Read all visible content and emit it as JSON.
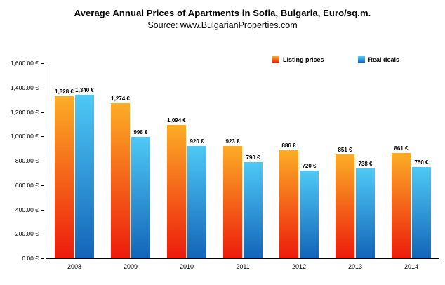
{
  "chart_data": {
    "type": "bar",
    "title": "Average Annual Prices of Apartments in Sofia, Bulgaria, Euro/sq.m.",
    "subtitle": "Source: www.BulgarianProperties.com",
    "categories": [
      "2008",
      "2009",
      "2010",
      "2011",
      "2012",
      "2013",
      "2014"
    ],
    "series": [
      {
        "name": "Listing prices",
        "color_top": "#FCAD26",
        "color_bottom": "#ED1B0C",
        "values": [
          1328,
          1274,
          1094,
          923,
          886,
          851,
          861
        ],
        "labels": [
          "1,328 €",
          "1,274 €",
          "1,094 €",
          "923 €",
          "886 €",
          "851 €",
          "861 €"
        ]
      },
      {
        "name": "Real deals",
        "color_top": "#4EC9F5",
        "color_bottom": "#1364B8",
        "values": [
          1340,
          998,
          920,
          790,
          720,
          738,
          750
        ],
        "labels": [
          "1,340 €",
          "998 €",
          "920 €",
          "790 €",
          "720 €",
          "738 €",
          "750 €"
        ]
      }
    ],
    "ylim": [
      0,
      1600
    ],
    "y_ticks": [
      "0.00 €",
      "200.00 €",
      "400.00 €",
      "600.00 €",
      "800.00 €",
      "1,000.00 €",
      "1,200.00 €",
      "1,400.00 €",
      "1,600.00 €"
    ],
    "legend_position": "top-right",
    "grid": false,
    "axis_color": "#000000",
    "background_color": "#FFFFFF"
  }
}
